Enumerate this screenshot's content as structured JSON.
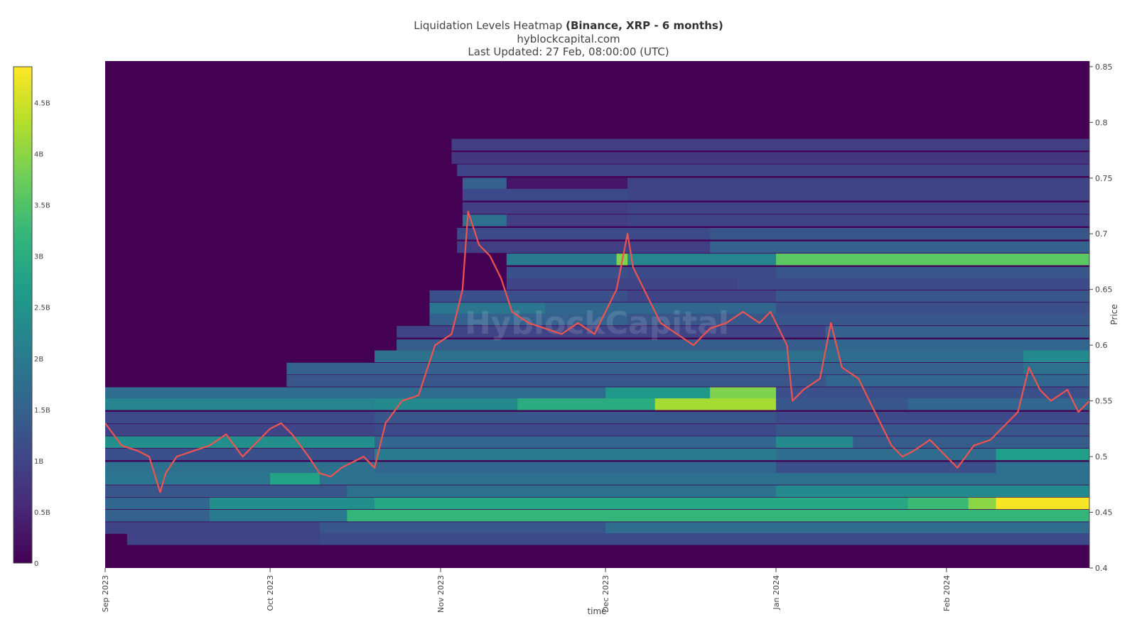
{
  "header": {
    "title_prefix": "Liquidation Levels Heatmap",
    "title_bold": "(Binance, XRP - 6 months)",
    "subtitle": "hyblockcapital.com",
    "updated": "Last Updated: 27 Feb, 08:00:00 (UTC)"
  },
  "watermark": "HyblockCapital",
  "colors": {
    "scale": [
      "#440154",
      "#482878",
      "#3e4989",
      "#31688e",
      "#26828e",
      "#1f9e89",
      "#35b779",
      "#6ece58",
      "#b5de2b",
      "#fde725"
    ],
    "price_line": "#ef5350",
    "colorbar_border": "#444444"
  },
  "chart_data": {
    "type": "heatmap",
    "title": "Liquidation Levels Heatmap (Binance, XRP - 6 months)",
    "xlabel": "time",
    "ylabel": "Price",
    "x_ticks": [
      "Sep 2023",
      "Oct 2023",
      "Nov 2023",
      "Dec 2023",
      "Jan 2024",
      "Feb 2024"
    ],
    "x_range": [
      "2023-09-01",
      "2024-02-27"
    ],
    "y_ticks": [
      0.4,
      0.45,
      0.5,
      0.55,
      0.6,
      0.65,
      0.7,
      0.75,
      0.8,
      0.85
    ],
    "y_tick_labels": [
      "0.4",
      "0.45",
      "0.5",
      "0.55",
      "0.6",
      "0.65",
      "0.7",
      "0.75",
      "0.8",
      "0.85"
    ],
    "y_range": [
      0.4,
      0.855
    ],
    "colorbar": {
      "range": [
        0,
        4.85
      ],
      "ticks": [
        0,
        0.5,
        1,
        1.5,
        2,
        2.5,
        3,
        3.5,
        4,
        4.5
      ],
      "tick_labels": [
        "0",
        "0.5B",
        "1B",
        "1.5B",
        "2B",
        "2.5B",
        "3B",
        "3.5B",
        "4B",
        "4.5B"
      ]
    },
    "liquidation_bands": [
      {
        "price": 0.78,
        "start": "2023-11-03",
        "segments": [
          [
            "2023-11-03",
            0.9
          ]
        ]
      },
      {
        "price": 0.768,
        "start": "2023-11-03",
        "segments": [
          [
            "2023-11-03",
            0.8
          ]
        ]
      },
      {
        "price": 0.757,
        "start": "2023-11-04",
        "segments": [
          [
            "2023-11-04",
            1.0
          ]
        ]
      },
      {
        "price": 0.745,
        "start": "2023-11-05",
        "segments": [
          [
            "2023-11-05",
            1.5
          ],
          [
            "2023-11-13",
            0.3
          ],
          [
            "2023-12-05",
            1.0
          ]
        ]
      },
      {
        "price": 0.735,
        "start": "2023-11-05",
        "segments": [
          [
            "2023-11-05",
            1.1
          ],
          [
            "2023-12-05",
            1.0
          ]
        ]
      },
      {
        "price": 0.723,
        "start": "2023-11-05",
        "segments": [
          [
            "2023-11-05",
            0.9
          ],
          [
            "2023-12-05",
            1.0
          ]
        ]
      },
      {
        "price": 0.712,
        "start": "2023-11-05",
        "segments": [
          [
            "2023-11-05",
            1.8
          ],
          [
            "2023-11-13",
            0.9
          ],
          [
            "2023-12-05",
            1.0
          ]
        ]
      },
      {
        "price": 0.7,
        "start": "2023-11-04",
        "segments": [
          [
            "2023-11-04",
            1.1
          ],
          [
            "2023-12-20",
            1.3
          ]
        ]
      },
      {
        "price": 0.688,
        "start": "2023-11-04",
        "segments": [
          [
            "2023-11-04",
            0.9
          ],
          [
            "2023-12-20",
            1.5
          ]
        ]
      },
      {
        "price": 0.677,
        "start": "2023-11-13",
        "segments": [
          [
            "2023-11-13",
            2.0
          ],
          [
            "2023-12-03",
            3.9
          ],
          [
            "2023-12-05",
            2.2
          ],
          [
            "2024-01-01",
            3.6
          ]
        ]
      },
      {
        "price": 0.665,
        "start": "2023-11-13",
        "segments": [
          [
            "2023-11-13",
            1.2
          ],
          [
            "2023-12-05",
            1.1
          ],
          [
            "2024-01-01",
            1.3
          ]
        ]
      },
      {
        "price": 0.655,
        "start": "2023-11-13",
        "segments": [
          [
            "2023-11-13",
            1.0
          ],
          [
            "2023-12-25",
            1.1
          ]
        ]
      },
      {
        "price": 0.644,
        "start": "2023-10-30",
        "segments": [
          [
            "2023-10-30",
            1.2
          ],
          [
            "2023-12-05",
            1.0
          ],
          [
            "2024-01-01",
            1.3
          ]
        ]
      },
      {
        "price": 0.633,
        "start": "2023-10-30",
        "segments": [
          [
            "2023-10-30",
            1.9
          ],
          [
            "2023-11-20",
            1.6
          ],
          [
            "2024-01-01",
            1.2
          ]
        ]
      },
      {
        "price": 0.623,
        "start": "2023-10-30",
        "segments": [
          [
            "2023-10-30",
            1.5
          ],
          [
            "2023-12-05",
            1.3
          ],
          [
            "2024-01-01",
            1.3
          ]
        ]
      },
      {
        "price": 0.612,
        "start": "2023-10-24",
        "segments": [
          [
            "2023-10-24",
            1.0
          ],
          [
            "2024-01-10",
            1.5
          ]
        ]
      },
      {
        "price": 0.6,
        "start": "2023-10-24",
        "segments": [
          [
            "2023-10-24",
            1.4
          ],
          [
            "2024-01-10",
            1.6
          ]
        ]
      },
      {
        "price": 0.59,
        "start": "2023-10-20",
        "segments": [
          [
            "2023-10-20",
            1.8
          ],
          [
            "2024-01-10",
            1.7
          ],
          [
            "2024-02-15",
            2.3
          ]
        ]
      },
      {
        "price": 0.579,
        "start": "2023-10-04",
        "segments": [
          [
            "2023-10-04",
            1.5
          ],
          [
            "2024-01-10",
            1.5
          ],
          [
            "2024-02-15",
            1.8
          ]
        ]
      },
      {
        "price": 0.568,
        "start": "2023-10-04",
        "segments": [
          [
            "2023-10-04",
            1.3
          ],
          [
            "2024-01-10",
            1.6
          ]
        ]
      },
      {
        "price": 0.557,
        "start": "2023-09-01",
        "segments": [
          [
            "2023-09-01",
            1.7
          ],
          [
            "2023-12-01",
            2.6
          ],
          [
            "2023-12-20",
            3.9
          ],
          [
            "2024-01-01",
            1.2
          ]
        ]
      },
      {
        "price": 0.547,
        "start": "2023-09-01",
        "segments": [
          [
            "2023-09-01",
            2.2
          ],
          [
            "2023-10-20",
            2.3
          ],
          [
            "2023-11-15",
            3.0
          ],
          [
            "2023-12-10",
            4.2
          ],
          [
            "2024-01-01",
            1.3
          ],
          [
            "2024-01-25",
            1.6
          ]
        ]
      },
      {
        "price": 0.535,
        "start": "2023-09-01",
        "segments": [
          [
            "2023-09-01",
            1.1
          ],
          [
            "2023-10-20",
            1.3
          ],
          [
            "2024-01-01",
            1.1
          ]
        ]
      },
      {
        "price": 0.524,
        "start": "2023-09-01",
        "segments": [
          [
            "2023-09-01",
            1.0
          ],
          [
            "2023-10-20",
            1.1
          ],
          [
            "2024-01-01",
            1.3
          ]
        ]
      },
      {
        "price": 0.513,
        "start": "2023-09-01",
        "segments": [
          [
            "2023-09-01",
            2.4
          ],
          [
            "2023-10-20",
            1.6
          ],
          [
            "2024-01-01",
            2.3
          ],
          [
            "2024-01-15",
            1.4
          ]
        ]
      },
      {
        "price": 0.502,
        "start": "2023-09-01",
        "segments": [
          [
            "2023-09-01",
            1.2
          ],
          [
            "2023-10-20",
            2.0
          ],
          [
            "2024-01-01",
            1.7
          ],
          [
            "2024-02-10",
            2.7
          ]
        ]
      },
      {
        "price": 0.49,
        "start": "2023-09-01",
        "segments": [
          [
            "2023-09-01",
            1.8
          ],
          [
            "2023-10-20",
            1.6
          ],
          [
            "2024-01-01",
            1.2
          ],
          [
            "2024-02-10",
            1.8
          ]
        ]
      },
      {
        "price": 0.48,
        "start": "2023-09-01",
        "segments": [
          [
            "2023-09-01",
            1.9
          ],
          [
            "2023-10-01",
            2.8
          ],
          [
            "2023-10-10",
            1.8
          ]
        ]
      },
      {
        "price": 0.469,
        "start": "2023-09-01",
        "segments": [
          [
            "2023-09-01",
            1.3
          ],
          [
            "2023-10-15",
            1.8
          ],
          [
            "2024-01-01",
            2.3
          ]
        ]
      },
      {
        "price": 0.458,
        "start": "2023-09-01",
        "segments": [
          [
            "2023-09-01",
            1.6
          ],
          [
            "2023-09-20",
            2.4
          ],
          [
            "2023-10-20",
            2.9
          ],
          [
            "2024-01-25",
            3.3
          ],
          [
            "2024-02-05",
            4.0
          ],
          [
            "2024-02-10",
            4.8
          ]
        ]
      },
      {
        "price": 0.447,
        "start": "2023-09-01",
        "segments": [
          [
            "2023-09-01",
            1.5
          ],
          [
            "2023-09-20",
            2.0
          ],
          [
            "2023-10-15",
            3.2
          ],
          [
            "2024-01-25",
            3.2
          ]
        ]
      },
      {
        "price": 0.436,
        "start": "2023-09-01",
        "segments": [
          [
            "2023-09-01",
            1.0
          ],
          [
            "2023-10-10",
            1.3
          ],
          [
            "2023-12-01",
            1.7
          ]
        ]
      },
      {
        "price": 0.426,
        "start": "2023-09-05",
        "segments": [
          [
            "2023-09-05",
            1.0
          ],
          [
            "2023-10-10",
            1.1
          ]
        ]
      }
    ],
    "price_series": {
      "name": "XRP price",
      "x": [
        "2023-09-01",
        "2023-09-04",
        "2023-09-07",
        "2023-09-09",
        "2023-09-11",
        "2023-09-12",
        "2023-09-14",
        "2023-09-17",
        "2023-09-20",
        "2023-09-23",
        "2023-09-26",
        "2023-09-28",
        "2023-10-01",
        "2023-10-03",
        "2023-10-05",
        "2023-10-08",
        "2023-10-10",
        "2023-10-12",
        "2023-10-14",
        "2023-10-16",
        "2023-10-18",
        "2023-10-20",
        "2023-10-22",
        "2023-10-25",
        "2023-10-28",
        "2023-10-31",
        "2023-11-03",
        "2023-11-05",
        "2023-11-06",
        "2023-11-08",
        "2023-11-10",
        "2023-11-12",
        "2023-11-14",
        "2023-11-17",
        "2023-11-20",
        "2023-11-23",
        "2023-11-26",
        "2023-11-29",
        "2023-12-01",
        "2023-12-03",
        "2023-12-05",
        "2023-12-06",
        "2023-12-08",
        "2023-12-11",
        "2023-12-14",
        "2023-12-17",
        "2023-12-20",
        "2023-12-23",
        "2023-12-26",
        "2023-12-29",
        "2023-12-31",
        "2024-01-03",
        "2024-01-04",
        "2024-01-06",
        "2024-01-09",
        "2024-01-11",
        "2024-01-13",
        "2024-01-16",
        "2024-01-19",
        "2024-01-22",
        "2024-01-24",
        "2024-01-26",
        "2024-01-29",
        "2024-02-01",
        "2024-02-03",
        "2024-02-06",
        "2024-02-09",
        "2024-02-12",
        "2024-02-14",
        "2024-02-16",
        "2024-02-18",
        "2024-02-20",
        "2024-02-23",
        "2024-02-25",
        "2024-02-27"
      ],
      "y": [
        0.53,
        0.51,
        0.505,
        0.5,
        0.468,
        0.485,
        0.5,
        0.505,
        0.51,
        0.52,
        0.5,
        0.51,
        0.525,
        0.53,
        0.52,
        0.5,
        0.485,
        0.482,
        0.49,
        0.495,
        0.5,
        0.49,
        0.53,
        0.55,
        0.555,
        0.6,
        0.61,
        0.65,
        0.72,
        0.69,
        0.68,
        0.66,
        0.63,
        0.62,
        0.615,
        0.61,
        0.62,
        0.61,
        0.63,
        0.65,
        0.7,
        0.67,
        0.65,
        0.62,
        0.61,
        0.6,
        0.615,
        0.62,
        0.63,
        0.62,
        0.63,
        0.6,
        0.55,
        0.56,
        0.57,
        0.62,
        0.58,
        0.57,
        0.54,
        0.51,
        0.5,
        0.505,
        0.515,
        0.5,
        0.49,
        0.51,
        0.515,
        0.53,
        0.54,
        0.58,
        0.56,
        0.55,
        0.56,
        0.54,
        0.55
      ]
    }
  }
}
